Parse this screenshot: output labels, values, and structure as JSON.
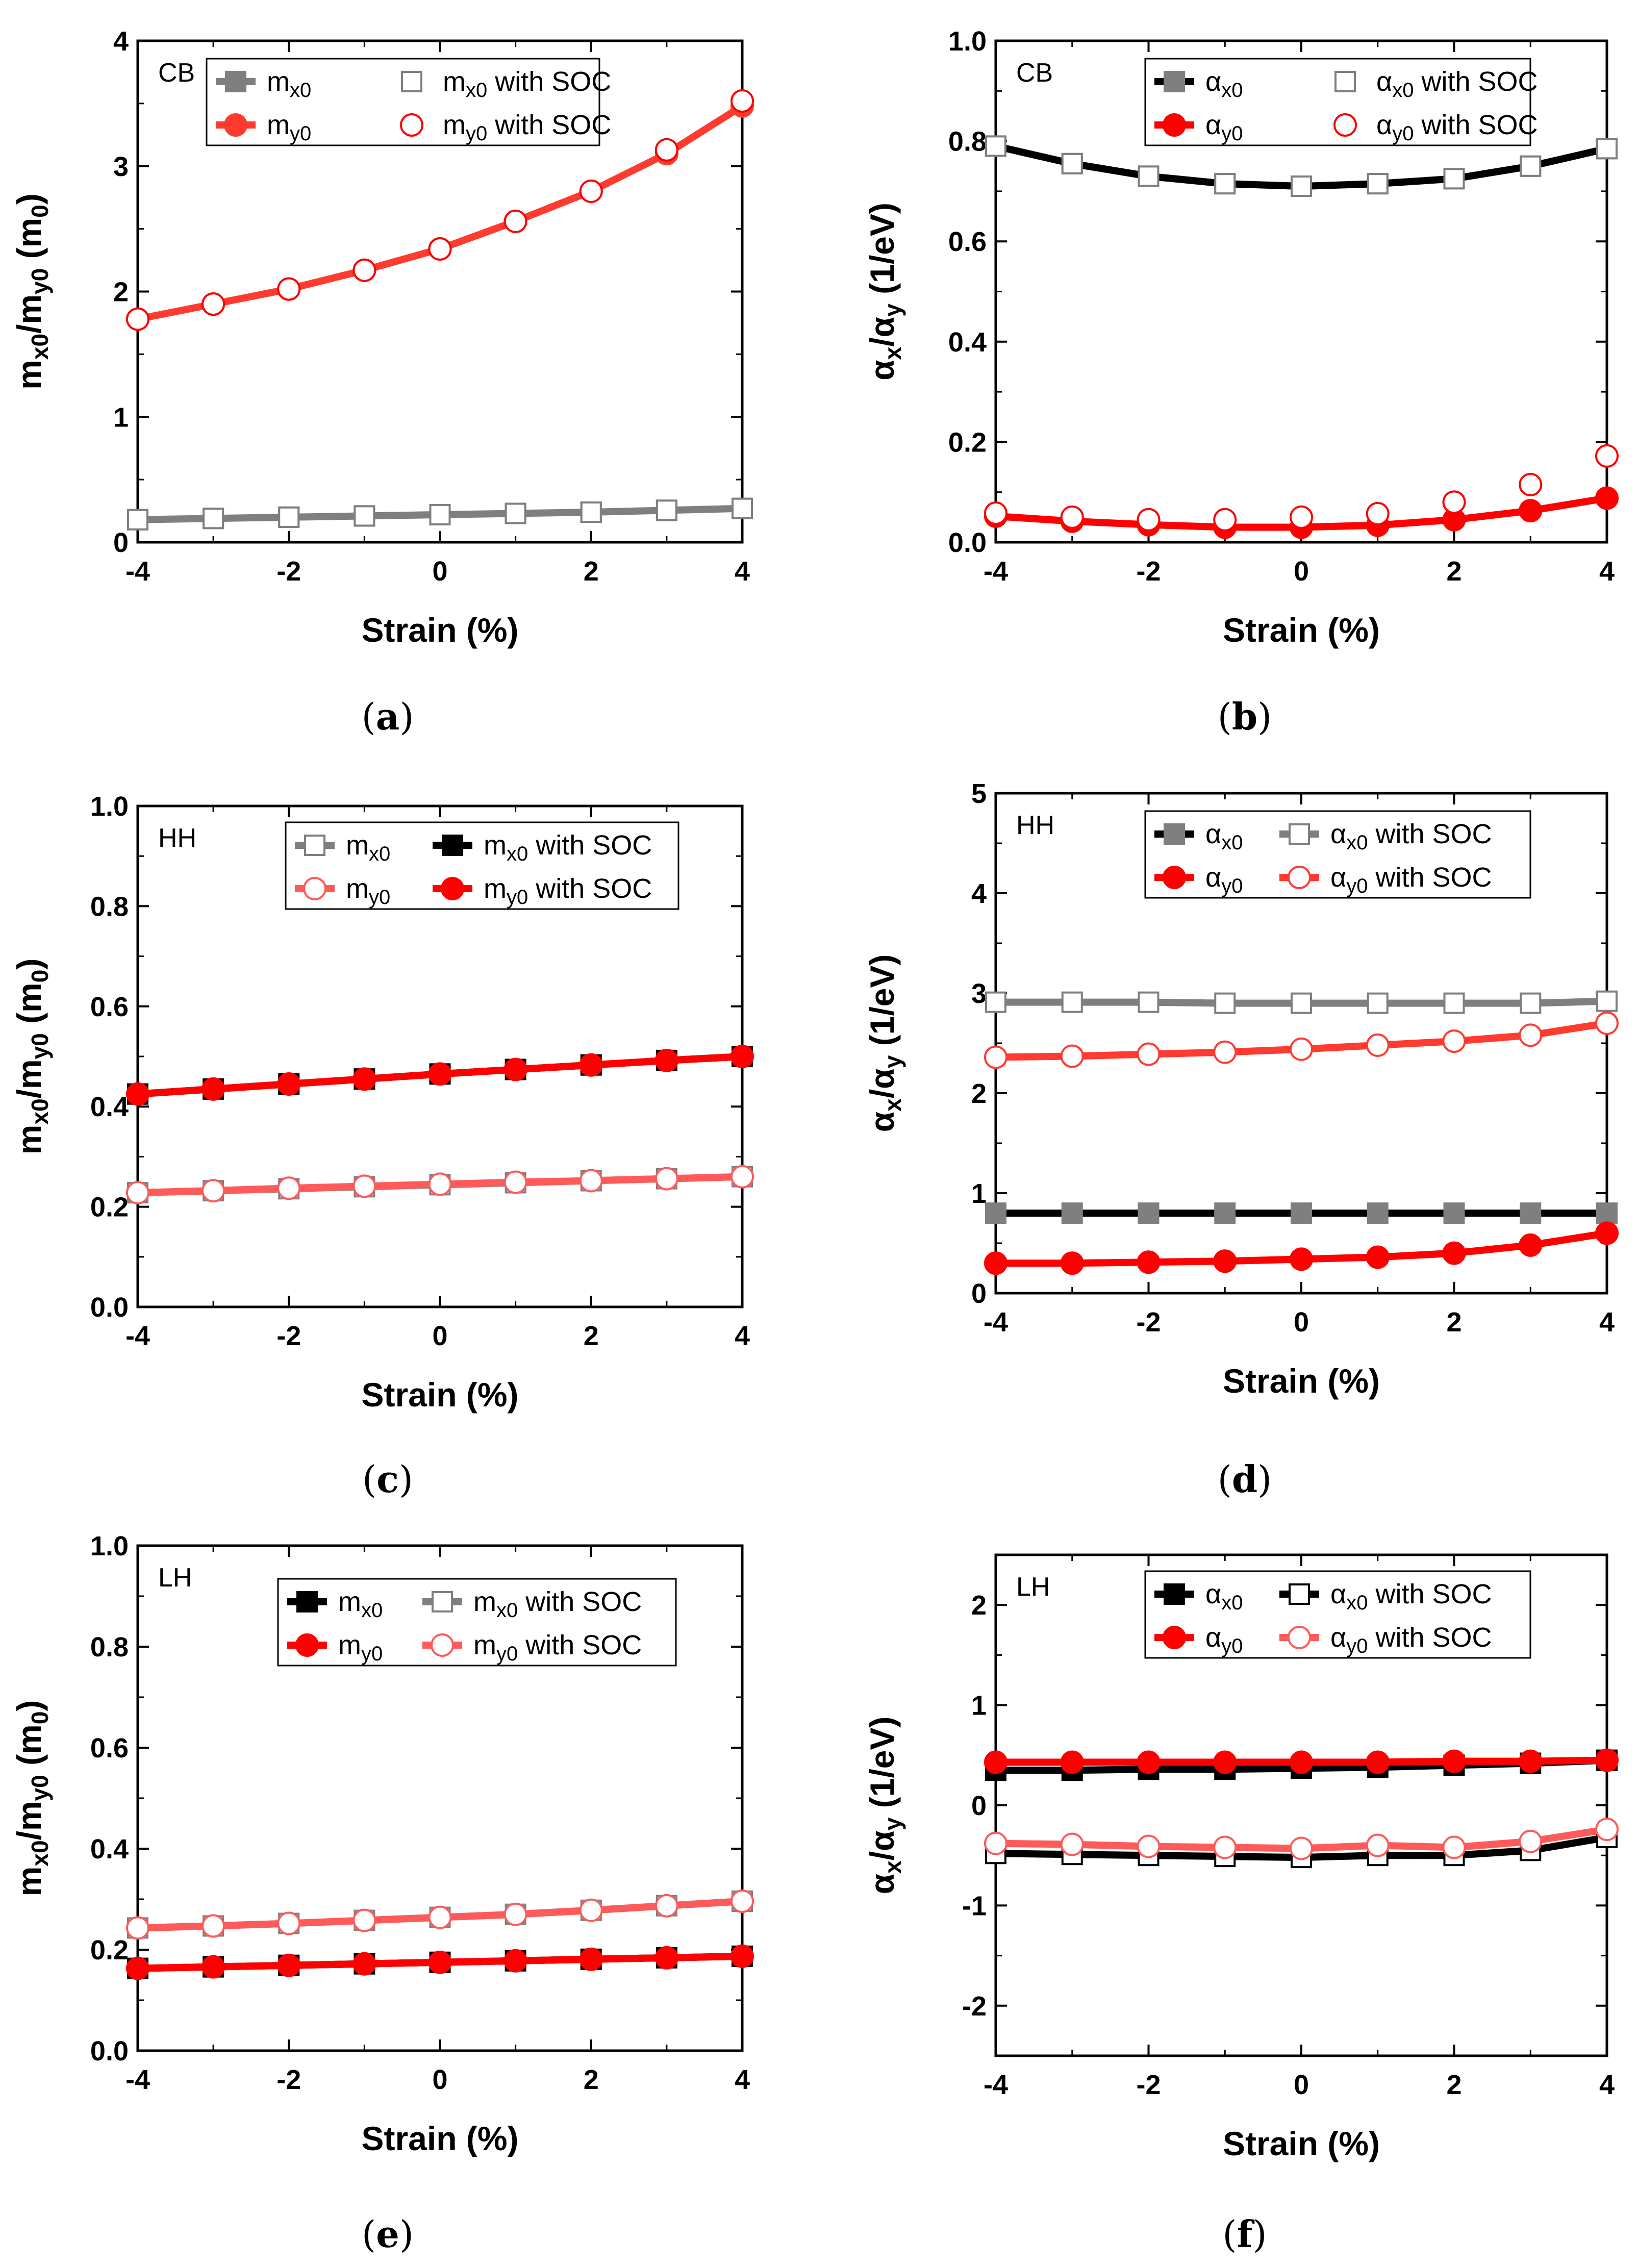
{
  "figure": {
    "caption_open": "(",
    "caption_close": ")",
    "subscript_parts": {
      "m": "m",
      "alpha": "α",
      "x": "x",
      "y": "y",
      "x0": "x0",
      "y0": "y0",
      "with_soc": "with SOC"
    }
  },
  "chart_data": [
    {
      "id": "a",
      "type": "line",
      "panel_label": "a",
      "band": "CB",
      "x": [
        -4,
        -3,
        -2,
        -1,
        0,
        1,
        2,
        3,
        4
      ],
      "xlim": [
        -4,
        4
      ],
      "xticks": [
        "-4",
        "-2",
        "0",
        "2",
        "4"
      ],
      "ylim": [
        0,
        4
      ],
      "yticks": [
        "0",
        "1",
        "2",
        "3",
        "4"
      ],
      "xlabel": "Strain (%)",
      "ylabel": "m_x0/m_y0 (m_0)",
      "ylabel_kind": "mass",
      "series": [
        {
          "name": "m_x0",
          "label": "m",
          "sub": "x0",
          "suffix": "",
          "values": [
            0.18,
            0.19,
            0.2,
            0.21,
            0.22,
            0.23,
            0.24,
            0.255,
            0.27
          ],
          "color": "#7f7f7f",
          "line": true,
          "marker": "square",
          "fill": "filled"
        },
        {
          "name": "m_x0 with SOC",
          "label": "m",
          "sub": "x0",
          "suffix": "with SOC",
          "values": [
            0.18,
            0.19,
            0.2,
            0.21,
            0.22,
            0.23,
            0.24,
            0.255,
            0.27
          ],
          "color": "#7f7f7f",
          "line": false,
          "marker": "square",
          "fill": "open"
        },
        {
          "name": "m_y0",
          "label": "m",
          "sub": "y0",
          "suffix": "",
          "values": [
            1.78,
            1.9,
            2.02,
            2.17,
            2.34,
            2.56,
            2.8,
            3.1,
            3.48
          ],
          "color": "#ff3b30",
          "line": true,
          "marker": "circle",
          "fill": "filled"
        },
        {
          "name": "m_y0 with SOC",
          "label": "m",
          "sub": "y0",
          "suffix": "with SOC",
          "values": [
            1.78,
            1.9,
            2.02,
            2.17,
            2.34,
            2.56,
            2.8,
            3.13,
            3.52
          ],
          "color": "#ff0000",
          "line": false,
          "marker": "circle",
          "fill": "open"
        }
      ]
    },
    {
      "id": "b",
      "type": "line",
      "panel_label": "b",
      "band": "CB",
      "x": [
        -4,
        -3,
        -2,
        -1,
        0,
        1,
        2,
        3,
        4
      ],
      "xlim": [
        -4,
        4
      ],
      "xticks": [
        "-4",
        "-2",
        "0",
        "2",
        "4"
      ],
      "ylim": [
        0,
        1.0
      ],
      "yticks": [
        "0.0",
        "0.2",
        "0.4",
        "0.6",
        "0.8",
        "1.0"
      ],
      "xlabel": "Strain (%)",
      "ylabel": "α_x/α_y (1/eV)",
      "ylabel_kind": "alpha",
      "series": [
        {
          "name": "α_x0",
          "label": "α",
          "sub": "x0",
          "suffix": "",
          "values": [
            0.79,
            0.755,
            0.73,
            0.715,
            0.71,
            0.715,
            0.725,
            0.75,
            0.785
          ],
          "color": "#000000",
          "line": true,
          "marker": "square",
          "fill": "filled-grey"
        },
        {
          "name": "α_x0 with SOC",
          "label": "α",
          "sub": "x0",
          "suffix": "with SOC",
          "values": [
            0.79,
            0.755,
            0.73,
            0.715,
            0.71,
            0.715,
            0.725,
            0.75,
            0.785
          ],
          "color": "#7f7f7f",
          "line": false,
          "marker": "square",
          "fill": "open"
        },
        {
          "name": "α_y0",
          "label": "α",
          "sub": "y0",
          "suffix": "",
          "values": [
            0.052,
            0.042,
            0.035,
            0.03,
            0.03,
            0.034,
            0.045,
            0.063,
            0.088
          ],
          "color": "#ff0000",
          "line": true,
          "marker": "circle",
          "fill": "filled"
        },
        {
          "name": "α_y0 with SOC",
          "label": "α",
          "sub": "y0",
          "suffix": "with SOC",
          "values": [
            0.058,
            0.05,
            0.045,
            0.045,
            0.05,
            0.057,
            0.08,
            0.115,
            0.172
          ],
          "color": "#ff0000",
          "line": false,
          "marker": "circle",
          "fill": "open"
        }
      ]
    },
    {
      "id": "c",
      "type": "line",
      "panel_label": "c",
      "band": "HH",
      "x": [
        -4,
        -3,
        -2,
        -1,
        0,
        1,
        2,
        3,
        4
      ],
      "xlim": [
        -4,
        4
      ],
      "xticks": [
        "-4",
        "-2",
        "0",
        "2",
        "4"
      ],
      "ylim": [
        0,
        1.0
      ],
      "yticks": [
        "0.0",
        "0.2",
        "0.4",
        "0.6",
        "0.8",
        "1.0"
      ],
      "xlabel": "Strain (%)",
      "ylabel": "m_x0/m_y0 (m_0)",
      "ylabel_kind": "mass",
      "series": [
        {
          "name": "m_x0",
          "label": "m",
          "sub": "x0",
          "suffix": "",
          "values": [
            0.228,
            0.232,
            0.236,
            0.24,
            0.244,
            0.248,
            0.252,
            0.256,
            0.26
          ],
          "color": "#7f7f7f",
          "line": true,
          "marker": "square",
          "fill": "open"
        },
        {
          "name": "m_x0 with SOC",
          "label": "m",
          "sub": "x0",
          "suffix": "with SOC",
          "values": [
            0.425,
            0.435,
            0.445,
            0.455,
            0.465,
            0.474,
            0.483,
            0.492,
            0.5
          ],
          "color": "#000000",
          "line": true,
          "marker": "square",
          "fill": "filled"
        },
        {
          "name": "m_y0",
          "label": "m",
          "sub": "y0",
          "suffix": "",
          "values": [
            0.228,
            0.232,
            0.237,
            0.241,
            0.245,
            0.249,
            0.252,
            0.256,
            0.26
          ],
          "color": "#ff5a5a",
          "line": true,
          "marker": "circle",
          "fill": "open"
        },
        {
          "name": "m_y0 with SOC",
          "label": "m",
          "sub": "y0",
          "suffix": "with SOC",
          "values": [
            0.425,
            0.435,
            0.445,
            0.455,
            0.465,
            0.474,
            0.483,
            0.492,
            0.5
          ],
          "color": "#ff0000",
          "line": true,
          "marker": "circle",
          "fill": "filled"
        }
      ]
    },
    {
      "id": "d",
      "type": "line",
      "panel_label": "d",
      "band": "HH",
      "x": [
        -4,
        -3,
        -2,
        -1,
        0,
        1,
        2,
        3,
        4
      ],
      "xlim": [
        -4,
        4
      ],
      "xticks": [
        "-4",
        "-2",
        "0",
        "2",
        "4"
      ],
      "ylim": [
        0,
        5
      ],
      "yticks": [
        "0",
        "1",
        "2",
        "3",
        "4",
        "5"
      ],
      "xlabel": "Strain (%)",
      "ylabel": "α_x/α_y (1/eV)",
      "ylabel_kind": "alpha",
      "series": [
        {
          "name": "α_x0",
          "label": "α",
          "sub": "x0",
          "suffix": "",
          "values": [
            0.8,
            0.8,
            0.8,
            0.8,
            0.8,
            0.8,
            0.8,
            0.8,
            0.8
          ],
          "color": "#000000",
          "line": true,
          "marker": "square",
          "fill": "filled-grey"
        },
        {
          "name": "α_x0 with SOC",
          "label": "α",
          "sub": "x0",
          "suffix": "with SOC",
          "values": [
            2.91,
            2.91,
            2.91,
            2.9,
            2.9,
            2.9,
            2.9,
            2.9,
            2.92
          ],
          "color": "#7f7f7f",
          "line": true,
          "marker": "square",
          "fill": "open"
        },
        {
          "name": "α_y0",
          "label": "α",
          "sub": "y0",
          "suffix": "",
          "values": [
            0.3,
            0.3,
            0.31,
            0.32,
            0.34,
            0.36,
            0.4,
            0.48,
            0.6
          ],
          "color": "#ff0000",
          "line": true,
          "marker": "circle",
          "fill": "filled"
        },
        {
          "name": "α_y0 with SOC",
          "label": "α",
          "sub": "y0",
          "suffix": "with SOC",
          "values": [
            2.36,
            2.37,
            2.39,
            2.41,
            2.44,
            2.48,
            2.52,
            2.58,
            2.7
          ],
          "color": "#ff3b30",
          "line": true,
          "marker": "circle",
          "fill": "open"
        }
      ]
    },
    {
      "id": "e",
      "type": "line",
      "panel_label": "e",
      "band": "LH",
      "x": [
        -4,
        -3,
        -2,
        -1,
        0,
        1,
        2,
        3,
        4
      ],
      "xlim": [
        -4,
        4
      ],
      "xticks": [
        "-4",
        "-2",
        "0",
        "2",
        "4"
      ],
      "ylim": [
        0,
        1.0
      ],
      "yticks": [
        "0.0",
        "0.2",
        "0.4",
        "0.6",
        "0.8",
        "1.0"
      ],
      "xlabel": "Strain (%)",
      "ylabel": "m_x0/m_y0 (m_0)",
      "ylabel_kind": "mass",
      "series": [
        {
          "name": "m_x0",
          "label": "m",
          "sub": "x0",
          "suffix": "",
          "values": [
            0.163,
            0.166,
            0.169,
            0.172,
            0.175,
            0.178,
            0.181,
            0.184,
            0.187
          ],
          "color": "#000000",
          "line": true,
          "marker": "square",
          "fill": "filled"
        },
        {
          "name": "m_x0 with SOC",
          "label": "m",
          "sub": "x0",
          "suffix": "with SOC",
          "values": [
            0.243,
            0.247,
            0.252,
            0.258,
            0.264,
            0.27,
            0.278,
            0.287,
            0.296
          ],
          "color": "#7f7f7f",
          "line": true,
          "marker": "square",
          "fill": "open"
        },
        {
          "name": "m_y0",
          "label": "m",
          "sub": "y0",
          "suffix": "",
          "values": [
            0.163,
            0.166,
            0.169,
            0.172,
            0.175,
            0.178,
            0.181,
            0.184,
            0.187
          ],
          "color": "#ff0000",
          "line": true,
          "marker": "circle",
          "fill": "filled"
        },
        {
          "name": "m_y0 with SOC",
          "label": "m",
          "sub": "y0",
          "suffix": "with SOC",
          "values": [
            0.243,
            0.247,
            0.252,
            0.258,
            0.264,
            0.27,
            0.278,
            0.287,
            0.296
          ],
          "color": "#ff5a5a",
          "line": true,
          "marker": "circle",
          "fill": "open"
        }
      ]
    },
    {
      "id": "f",
      "type": "line",
      "panel_label": "f",
      "band": "LH",
      "x": [
        -4,
        -3,
        -2,
        -1,
        0,
        1,
        2,
        3,
        4
      ],
      "xlim": [
        -4,
        4
      ],
      "xticks": [
        "-4",
        "-2",
        "0",
        "2",
        "4"
      ],
      "ylim": [
        -2.5,
        2.5
      ],
      "yticks": [
        "-2",
        "-1",
        "0",
        "1",
        "2"
      ],
      "ytick_values": [
        -2,
        -1,
        0,
        1,
        2
      ],
      "xlabel": "Strain (%)",
      "ylabel": "α_x/α_y (1/eV)",
      "ylabel_kind": "alpha",
      "series": [
        {
          "name": "α_x0",
          "label": "α",
          "sub": "x0",
          "suffix": "",
          "values": [
            0.35,
            0.35,
            0.36,
            0.36,
            0.37,
            0.38,
            0.4,
            0.42,
            0.45
          ],
          "color": "#000000",
          "line": true,
          "marker": "square",
          "fill": "filled"
        },
        {
          "name": "α_x0 with SOC",
          "label": "α",
          "sub": "x0",
          "suffix": "with SOC",
          "values": [
            -0.48,
            -0.49,
            -0.5,
            -0.51,
            -0.52,
            -0.5,
            -0.5,
            -0.45,
            -0.32
          ],
          "color": "#000000",
          "line": true,
          "marker": "square",
          "fill": "open"
        },
        {
          "name": "α_y0",
          "label": "α",
          "sub": "y0",
          "suffix": "",
          "values": [
            0.43,
            0.43,
            0.43,
            0.43,
            0.43,
            0.43,
            0.44,
            0.44,
            0.45
          ],
          "color": "#ff0000",
          "line": true,
          "marker": "circle",
          "fill": "filled"
        },
        {
          "name": "α_y0 with SOC",
          "label": "α",
          "sub": "y0",
          "suffix": "with SOC",
          "values": [
            -0.38,
            -0.39,
            -0.41,
            -0.42,
            -0.43,
            -0.4,
            -0.42,
            -0.36,
            -0.24
          ],
          "color": "#ff5a5a",
          "line": true,
          "marker": "circle",
          "fill": "open"
        }
      ]
    }
  ]
}
